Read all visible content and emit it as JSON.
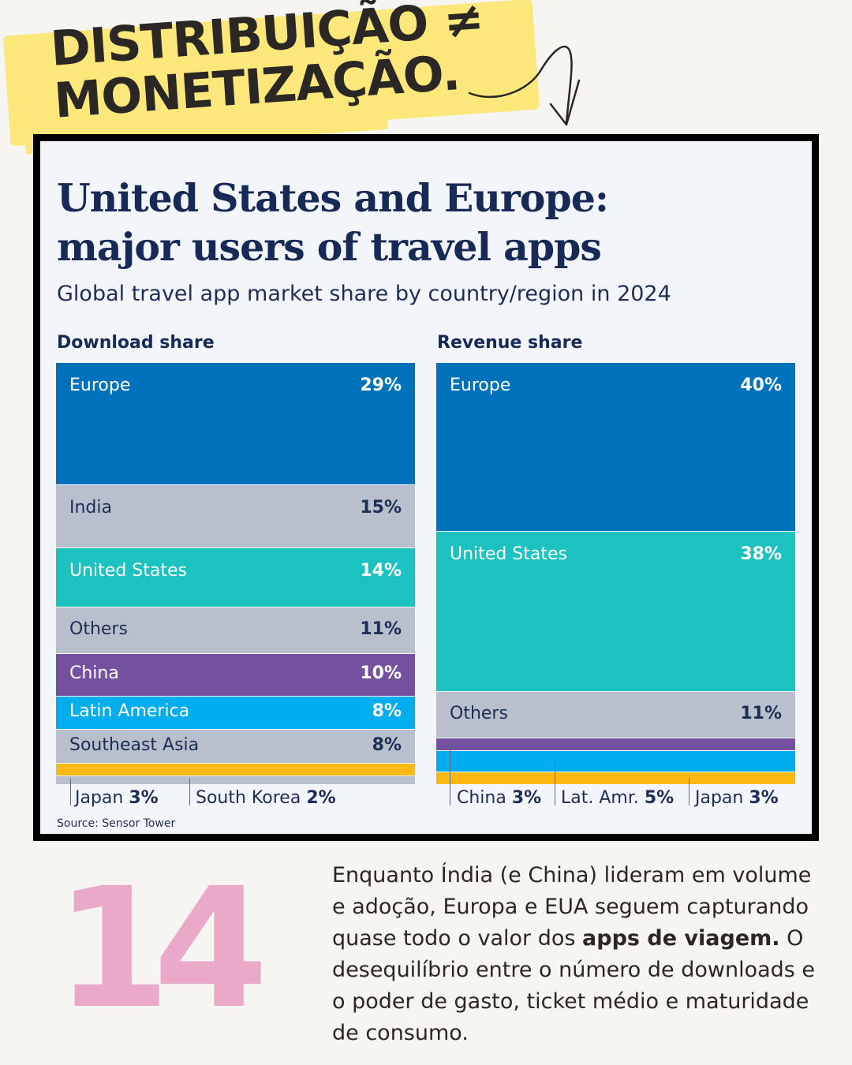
{
  "headline": {
    "line1": "DISTRIBUIÇÃO ≠",
    "line2": "MONETIZAÇÃO."
  },
  "chart": {
    "title_line1": "United States and Europe:",
    "title_line2": "major users of travel apps",
    "subtitle": "Global travel app market share by country/region in 2024",
    "source": "Source: Sensor Tower"
  },
  "colors": {
    "europe": "#0072bb",
    "gray": "#b9c0cd",
    "teal": "#1cc2c0",
    "purple": "#7550a0",
    "lightblue": "#00adee",
    "yellow": "#fdb913",
    "pink": "#eba9c8"
  },
  "chart_data": [
    {
      "type": "bar",
      "orientation": "stacked-100",
      "title": "Download share",
      "series": [
        {
          "name": "Europe",
          "value": 29,
          "label": "29%",
          "color": "#0072bb",
          "text": "light",
          "show_label": true
        },
        {
          "name": "India",
          "value": 15,
          "label": "15%",
          "color": "#b9c0cd",
          "text": "dark",
          "show_label": true
        },
        {
          "name": "United States",
          "value": 14,
          "label": "14%",
          "color": "#1cc2c0",
          "text": "light",
          "show_label": true
        },
        {
          "name": "Others",
          "value": 11,
          "label": "11%",
          "color": "#b9c0cd",
          "text": "dark",
          "show_label": true
        },
        {
          "name": "China",
          "value": 10,
          "label": "10%",
          "color": "#7550a0",
          "text": "light",
          "show_label": true
        },
        {
          "name": "Latin America",
          "value": 8,
          "label": "8%",
          "color": "#00adee",
          "text": "light",
          "show_label": true
        },
        {
          "name": "Southeast Asia",
          "value": 8,
          "label": "8%",
          "color": "#b9c0cd",
          "text": "dark",
          "show_label": true
        },
        {
          "name": "Japan",
          "value": 3,
          "label": "3%",
          "color": "#fdb913",
          "text": "dark",
          "show_label": false
        },
        {
          "name": "South Korea",
          "value": 2,
          "label": "2%",
          "color": "#b9c0cd",
          "text": "dark",
          "show_label": false
        }
      ],
      "small_labels": [
        {
          "name": "Japan",
          "value": "3%"
        },
        {
          "name": "South Korea",
          "value": "2%"
        }
      ]
    },
    {
      "type": "bar",
      "orientation": "stacked-100",
      "title": "Revenue share",
      "series": [
        {
          "name": "Europe",
          "value": 40,
          "label": "40%",
          "color": "#0072bb",
          "text": "light",
          "show_label": true
        },
        {
          "name": "United States",
          "value": 38,
          "label": "38%",
          "color": "#1cc2c0",
          "text": "light",
          "show_label": true
        },
        {
          "name": "Others",
          "value": 11,
          "label": "11%",
          "color": "#b9c0cd",
          "text": "dark",
          "show_label": true
        },
        {
          "name": "China",
          "value": 3,
          "label": "3%",
          "color": "#7550a0",
          "text": "light",
          "show_label": false
        },
        {
          "name": "Lat. Amr.",
          "value": 5,
          "label": "5%",
          "color": "#00adee",
          "text": "light",
          "show_label": false
        },
        {
          "name": "Japan",
          "value": 3,
          "label": "3%",
          "color": "#fdb913",
          "text": "dark",
          "show_label": false
        }
      ],
      "small_labels": [
        {
          "name": "China",
          "value": "3%"
        },
        {
          "name": "Lat. Amr.",
          "value": "5%"
        },
        {
          "name": "Japan",
          "value": "3%"
        }
      ]
    }
  ],
  "footer": {
    "number": "14",
    "text_1": "Enquanto Índia (e China) lideram em volume e adoção, Europa e EUA seguem capturando quase todo o valor dos ",
    "text_bold": "apps de viagem.",
    "text_2": " O desequilíbrio entre o número de downloads e o poder de gasto, ticket médio e maturidade de consumo."
  }
}
